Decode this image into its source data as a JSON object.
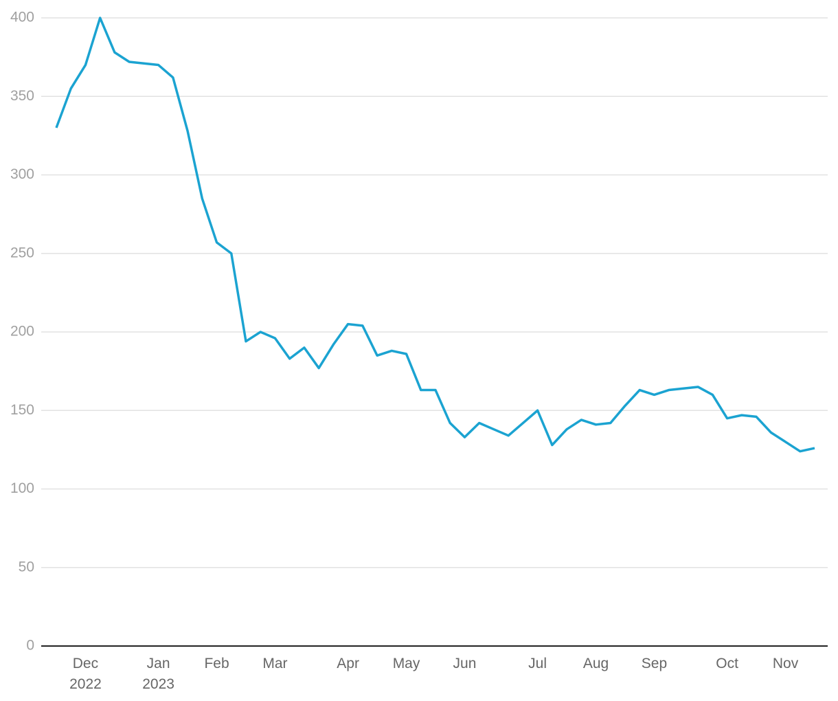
{
  "chart_data": {
    "type": "line",
    "categories": [
      null,
      null,
      "Dec 2022",
      null,
      null,
      null,
      null,
      "Jan 2023",
      null,
      null,
      null,
      "Feb",
      null,
      null,
      null,
      "Mar",
      null,
      null,
      null,
      null,
      "Apr",
      null,
      null,
      null,
      "May",
      null,
      null,
      null,
      "Jun",
      null,
      null,
      null,
      null,
      "Jul",
      null,
      null,
      null,
      "Aug",
      null,
      null,
      null,
      "Sep",
      null,
      null,
      null,
      null,
      "Oct",
      null,
      null,
      null,
      "Nov",
      null,
      null
    ],
    "series": [
      {
        "color": "#1ba3d1",
        "values": [
          330,
          355,
          370,
          400,
          378,
          372,
          371,
          370,
          362,
          328,
          285,
          257,
          250,
          194,
          200,
          196,
          183,
          190,
          177,
          192,
          205,
          204,
          185,
          188,
          186,
          163,
          163,
          142,
          133,
          142,
          138,
          134,
          142,
          150,
          128,
          138,
          144,
          141,
          142,
          153,
          163,
          160,
          163,
          164,
          165,
          160,
          145,
          147,
          146,
          136,
          130,
          124,
          126
        ]
      }
    ],
    "ylim": [
      0,
      400
    ],
    "yticks": [
      0,
      50,
      100,
      150,
      200,
      250,
      300,
      350,
      400
    ],
    "grid": true
  }
}
